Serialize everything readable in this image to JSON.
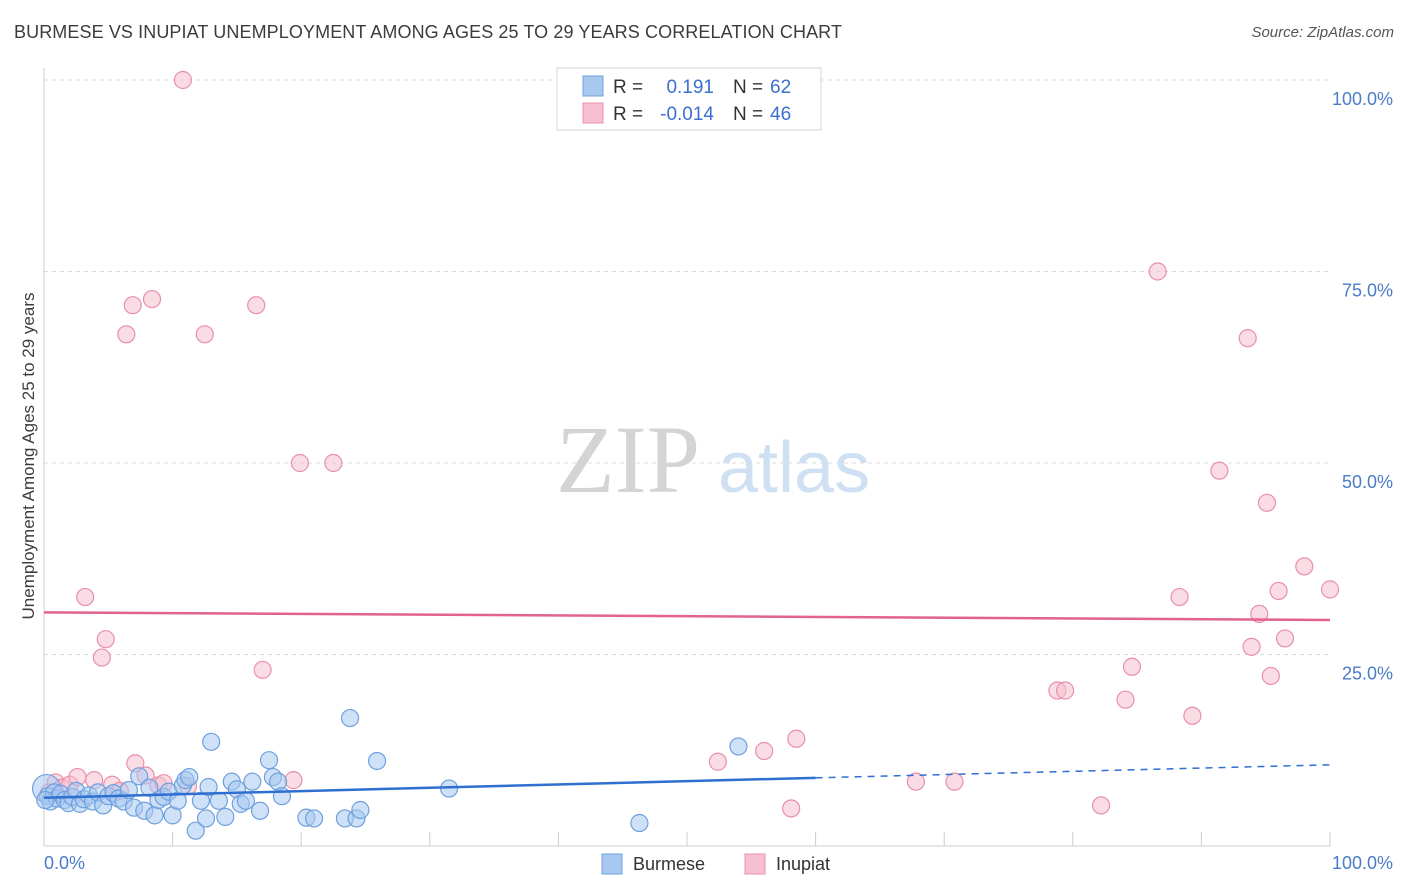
{
  "header": {
    "title": "BURMESE VS INUPIAT UNEMPLOYMENT AMONG AGES 25 TO 29 YEARS CORRELATION CHART",
    "source": "Source: ZipAtlas.com"
  },
  "watermark": {
    "zip": "ZIP",
    "atlas": "atlas"
  },
  "legend_box": {
    "rows": [
      {
        "r_label": "R =",
        "r_value": "0.191",
        "n_label": "N =",
        "n_value": "62",
        "color": "#a8c8f0"
      },
      {
        "r_label": "R =",
        "r_value": "-0.014",
        "n_label": "N =",
        "n_value": "46",
        "color": "#f6b8cc"
      }
    ]
  },
  "colors": {
    "burmese_fill": "#a8c8f0",
    "burmese_stroke": "#6fa0de",
    "burmese_line": "#2f6fd0",
    "inupiat_fill": "#f6c0d0",
    "inupiat_stroke": "#e890ac",
    "inupiat_line": "#e2638c",
    "axis_text": "#4a7cc7",
    "grid": "#dddddd"
  },
  "chart_data": {
    "type": "scatter",
    "title": "BURMESE VS INUPIAT UNEMPLOYMENT AMONG AGES 25 TO 29 YEARS CORRELATION CHART",
    "xlabel": "",
    "ylabel": "Unemployment Among Ages 25 to 29 years",
    "xlim": [
      0,
      100
    ],
    "ylim": [
      0,
      105
    ],
    "x_tick_labels": [
      "0.0%",
      "100.0%"
    ],
    "y_ticks": [
      25,
      50,
      75,
      100
    ],
    "y_tick_labels": [
      "25.0%",
      "50.0%",
      "75.0%",
      "100.0%"
    ],
    "legend": [
      "Burmese",
      "Inupiat"
    ],
    "series": [
      {
        "name": "Burmese",
        "r": 0.191,
        "n": 62,
        "trend": {
          "x0": 0,
          "y0": 6.3,
          "x1": 60,
          "y1": 8.9,
          "dashed_to_x": 100,
          "dashed_to_y": 10.6
        },
        "points": [
          [
            0.2,
            7.5
          ],
          [
            0.3,
            6.5
          ],
          [
            0.5,
            5.8
          ],
          [
            0.8,
            7.0
          ],
          [
            1.0,
            6.2
          ],
          [
            1.3,
            6.8
          ],
          [
            1.6,
            6.0
          ],
          [
            1.9,
            5.6
          ],
          [
            2.2,
            6.4
          ],
          [
            2.5,
            7.2
          ],
          [
            2.8,
            5.5
          ],
          [
            3.1,
            6.1
          ],
          [
            3.5,
            6.6
          ],
          [
            3.8,
            5.8
          ],
          [
            4.2,
            7.0
          ],
          [
            4.6,
            5.3
          ],
          [
            5.0,
            6.5
          ],
          [
            5.4,
            6.9
          ],
          [
            5.8,
            6.2
          ],
          [
            6.2,
            5.8
          ],
          [
            6.6,
            7.3
          ],
          [
            7.0,
            5.0
          ],
          [
            7.4,
            9.1
          ],
          [
            7.8,
            4.6
          ],
          [
            8.2,
            7.6
          ],
          [
            8.6,
            4.0
          ],
          [
            8.9,
            6.0
          ],
          [
            9.3,
            6.4
          ],
          [
            9.7,
            7.1
          ],
          [
            10.0,
            4.0
          ],
          [
            10.4,
            5.9
          ],
          [
            10.8,
            7.9
          ],
          [
            11.0,
            8.6
          ],
          [
            11.3,
            9.0
          ],
          [
            11.8,
            2.0
          ],
          [
            12.2,
            5.9
          ],
          [
            12.6,
            3.6
          ],
          [
            12.8,
            7.7
          ],
          [
            13.0,
            13.6
          ],
          [
            13.6,
            5.9
          ],
          [
            14.1,
            3.8
          ],
          [
            14.6,
            8.4
          ],
          [
            15.0,
            7.4
          ],
          [
            15.3,
            5.5
          ],
          [
            15.7,
            5.9
          ],
          [
            16.2,
            8.4
          ],
          [
            16.8,
            4.6
          ],
          [
            17.5,
            11.2
          ],
          [
            17.8,
            9.0
          ],
          [
            18.2,
            8.4
          ],
          [
            18.5,
            6.5
          ],
          [
            20.4,
            3.7
          ],
          [
            21.0,
            3.6
          ],
          [
            23.4,
            3.6
          ],
          [
            23.8,
            16.7
          ],
          [
            24.3,
            3.6
          ],
          [
            24.6,
            4.7
          ],
          [
            25.9,
            11.1
          ],
          [
            31.5,
            7.5
          ],
          [
            46.3,
            3.0
          ],
          [
            54.0,
            13.0
          ],
          [
            0.1,
            6.0
          ]
        ]
      },
      {
        "name": "Inupiat",
        "r": -0.014,
        "n": 46,
        "trend": {
          "x0": 0,
          "y0": 30.5,
          "x1": 100,
          "y1": 29.5
        },
        "points": [
          [
            0.4,
            7.0
          ],
          [
            0.9,
            8.3
          ],
          [
            1.4,
            7.6
          ],
          [
            2.0,
            8.0
          ],
          [
            2.6,
            9.0
          ],
          [
            3.2,
            32.5
          ],
          [
            3.9,
            8.6
          ],
          [
            4.5,
            24.6
          ],
          [
            4.8,
            27.0
          ],
          [
            5.3,
            8.0
          ],
          [
            5.9,
            7.2
          ],
          [
            6.4,
            66.8
          ],
          [
            6.9,
            70.6
          ],
          [
            7.1,
            10.8
          ],
          [
            7.9,
            9.2
          ],
          [
            8.4,
            71.4
          ],
          [
            8.9,
            7.9
          ],
          [
            9.3,
            8.2
          ],
          [
            10.8,
            100.0
          ],
          [
            11.2,
            7.8
          ],
          [
            12.5,
            66.8
          ],
          [
            16.5,
            70.6
          ],
          [
            17.0,
            23.0
          ],
          [
            19.4,
            8.6
          ],
          [
            19.9,
            50.0
          ],
          [
            22.5,
            50.0
          ],
          [
            52.4,
            11.0
          ],
          [
            56.0,
            12.4
          ],
          [
            58.1,
            4.9
          ],
          [
            58.5,
            14.0
          ],
          [
            67.8,
            8.4
          ],
          [
            70.8,
            8.4
          ],
          [
            78.8,
            20.3
          ],
          [
            79.4,
            20.3
          ],
          [
            82.2,
            5.3
          ],
          [
            84.1,
            19.1
          ],
          [
            84.6,
            23.4
          ],
          [
            86.6,
            75.0
          ],
          [
            88.3,
            32.5
          ],
          [
            89.3,
            17.0
          ],
          [
            91.4,
            49.0
          ],
          [
            93.6,
            66.3
          ],
          [
            93.9,
            26.0
          ],
          [
            94.5,
            30.3
          ],
          [
            95.1,
            44.8
          ],
          [
            95.4,
            22.2
          ]
        ],
        "extra_points": [
          [
            96.0,
            33.3
          ],
          [
            96.5,
            27.1
          ],
          [
            98.0,
            36.5
          ],
          [
            100.0,
            33.5
          ]
        ]
      }
    ]
  },
  "bottom_legend": {
    "items": [
      {
        "label": "Burmese"
      },
      {
        "label": "Inupiat"
      }
    ]
  }
}
